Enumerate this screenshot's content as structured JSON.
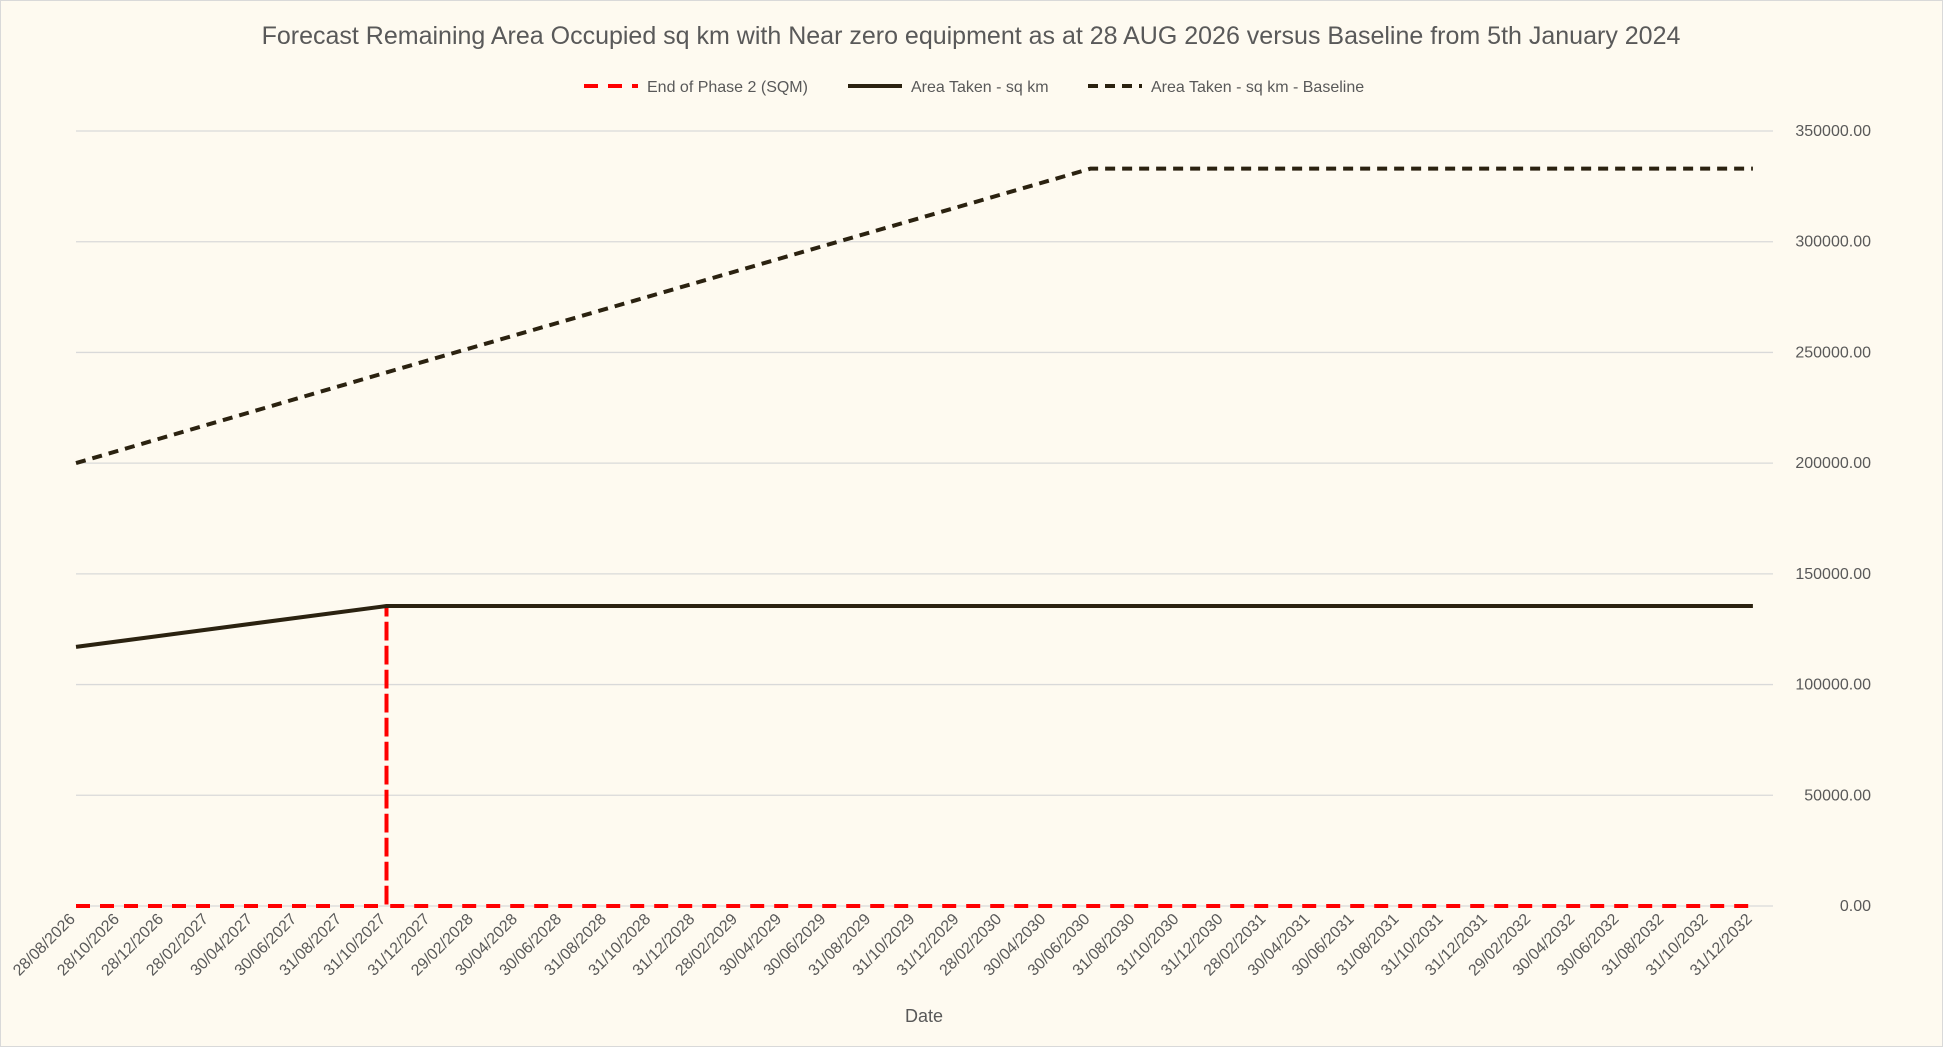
{
  "chart_data": {
    "type": "line",
    "title": "Forecast Remaining Area Occupied sq km with Near zero equipment as at 28 AUG 2026 versus Baseline from 5th January 2024",
    "xlabel": "Date",
    "ylabel": "",
    "ylim": [
      0,
      350000
    ],
    "y_ticks": [
      "0.00",
      "50000.00",
      "100000.00",
      "150000.00",
      "200000.00",
      "250000.00",
      "300000.00",
      "350000.00"
    ],
    "y_axis_position": "right",
    "grid": true,
    "legend_position": "top",
    "x": [
      "28/08/2026",
      "28/10/2026",
      "28/12/2026",
      "28/02/2027",
      "30/04/2027",
      "30/06/2027",
      "31/08/2027",
      "31/10/2027",
      "31/12/2027",
      "29/02/2028",
      "30/04/2028",
      "30/06/2028",
      "31/08/2028",
      "31/10/2028",
      "31/12/2028",
      "28/02/2029",
      "30/04/2029",
      "30/06/2029",
      "31/08/2029",
      "31/10/2029",
      "31/12/2029",
      "28/02/2030",
      "30/04/2030",
      "30/06/2030",
      "31/08/2030",
      "31/10/2030",
      "31/12/2030",
      "28/02/2031",
      "30/04/2031",
      "30/06/2031",
      "31/08/2031",
      "31/10/2031",
      "31/12/2031",
      "29/02/2032",
      "30/04/2032",
      "30/06/2032",
      "31/08/2032",
      "31/10/2032",
      "31/12/2032"
    ],
    "series": [
      {
        "name": "End of Phase 2 (SQM)",
        "color": "#ff0000",
        "dash": "dashed",
        "points": [
          [
            "28/08/2026",
            0
          ],
          [
            "31/10/2027",
            0
          ],
          [
            "31/10/2027",
            135000
          ],
          [
            "31/10/2027",
            0
          ],
          [
            "31/12/2032",
            0
          ]
        ]
      },
      {
        "name": "Area Taken - sq km",
        "color": "#2b2210",
        "dash": "solid",
        "points": [
          [
            "28/08/2026",
            117000
          ],
          [
            "31/10/2027",
            135500
          ],
          [
            "31/12/2032",
            135500
          ]
        ]
      },
      {
        "name": "Area Taken - sq km - Baseline",
        "color": "#2b2210",
        "dash": "dashed",
        "points": [
          [
            "28/08/2026",
            200000
          ],
          [
            "31/10/2027",
            241000
          ],
          [
            "30/06/2030",
            333000
          ],
          [
            "31/12/2032",
            333000
          ]
        ]
      }
    ]
  }
}
